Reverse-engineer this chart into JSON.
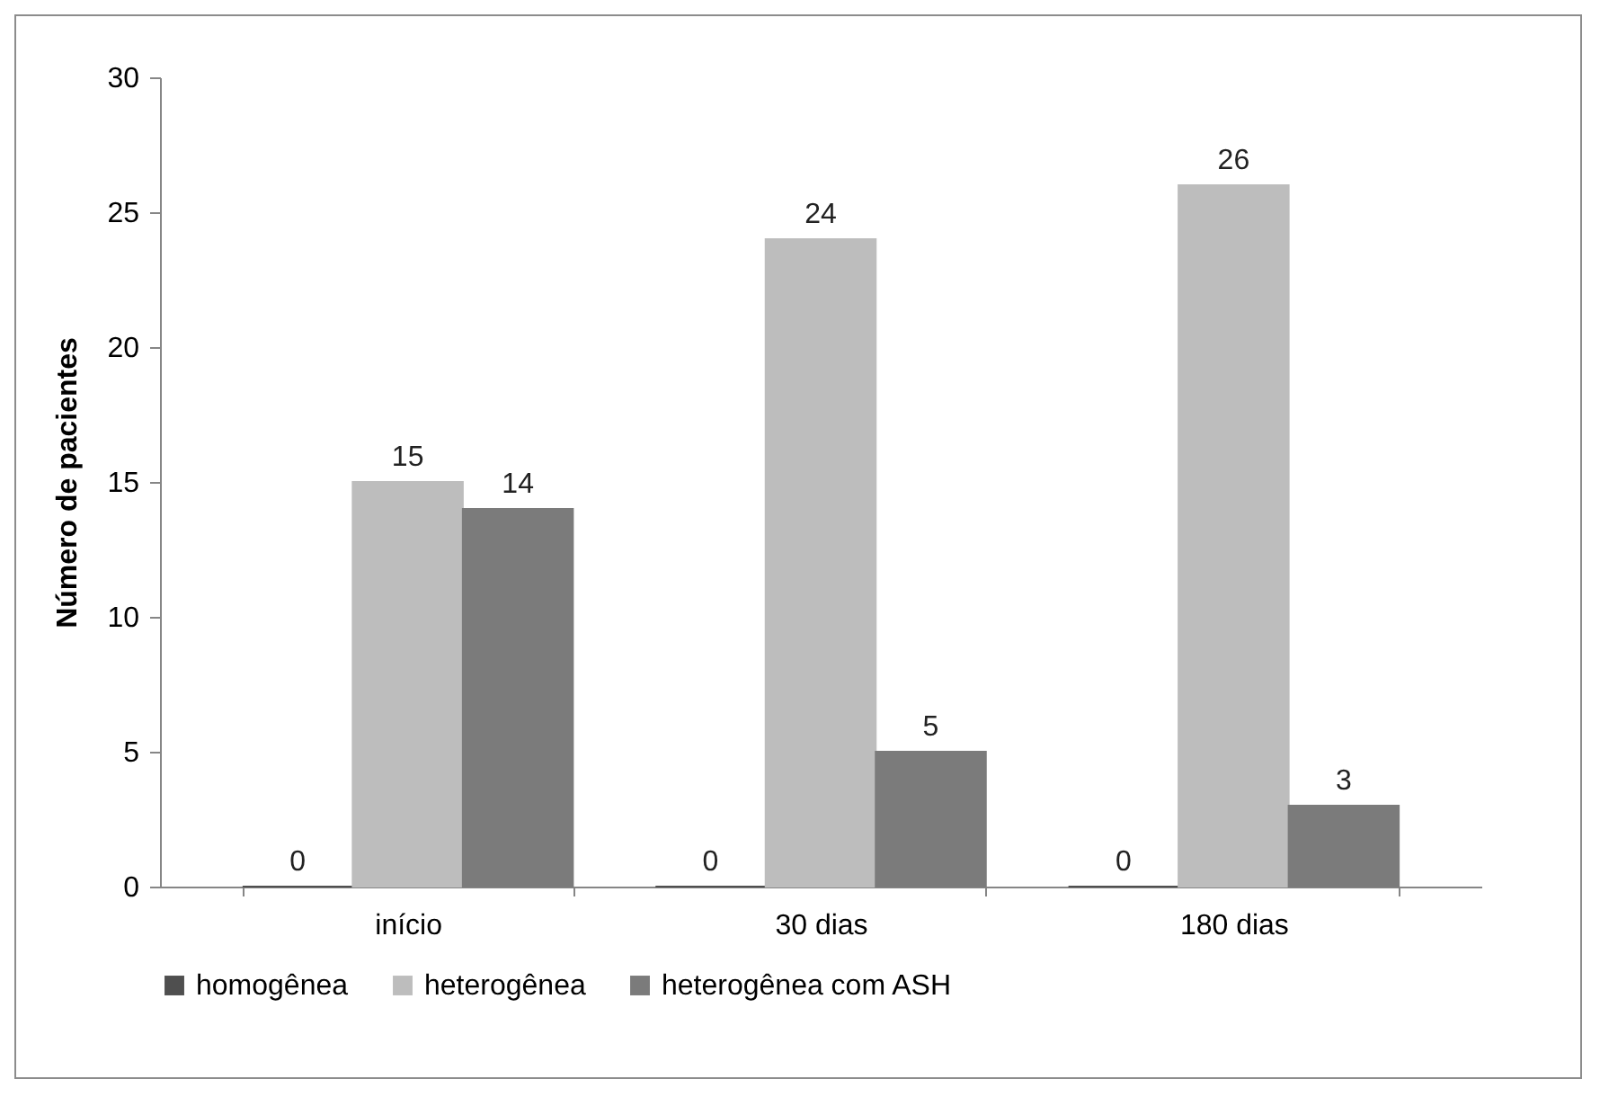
{
  "chart_data": {
    "type": "bar",
    "ylabel": "Número de pacientes",
    "categories": [
      "início",
      "30 dias",
      "180 dias"
    ],
    "series": [
      {
        "name": "homogênea",
        "color": "#4f4f4f",
        "values": [
          0,
          0,
          0
        ]
      },
      {
        "name": "heterogênea",
        "color": "#bdbdbd",
        "values": [
          15,
          24,
          26
        ]
      },
      {
        "name": "heterogênea com ASH",
        "color": "#7b7b7b",
        "values": [
          14,
          5,
          3
        ]
      }
    ],
    "ylim": [
      0,
      30
    ],
    "yticks": [
      0,
      5,
      10,
      15,
      20,
      25,
      30
    ],
    "data_labels": true,
    "legend": "bottom"
  }
}
